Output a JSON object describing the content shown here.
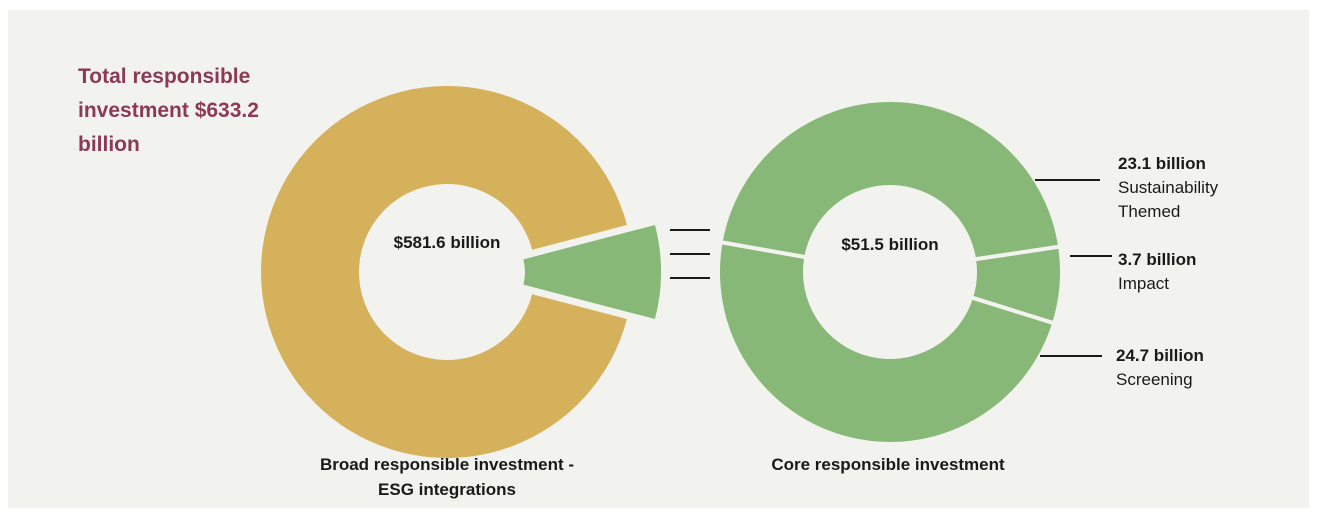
{
  "title": "Total responsible investment $633.2 billion",
  "chart_data": [
    {
      "type": "donut",
      "title": "Broad responsible investment - ESG integrations",
      "values": [
        581.6,
        51.5
      ],
      "value_labels": [
        "$581.6 billion",
        "$51.5 billion"
      ],
      "colors": [
        "#d6b15c",
        "#88b878"
      ]
    },
    {
      "type": "donut",
      "title": "Core responsible investment",
      "categories": [
        "Sustainability Themed",
        "Impact",
        "Screening"
      ],
      "values": [
        23.1,
        3.7,
        24.7
      ],
      "value_labels": [
        "23.1 billion",
        "3.7 billion",
        "24.7 billion"
      ],
      "color": "#88b878"
    }
  ]
}
